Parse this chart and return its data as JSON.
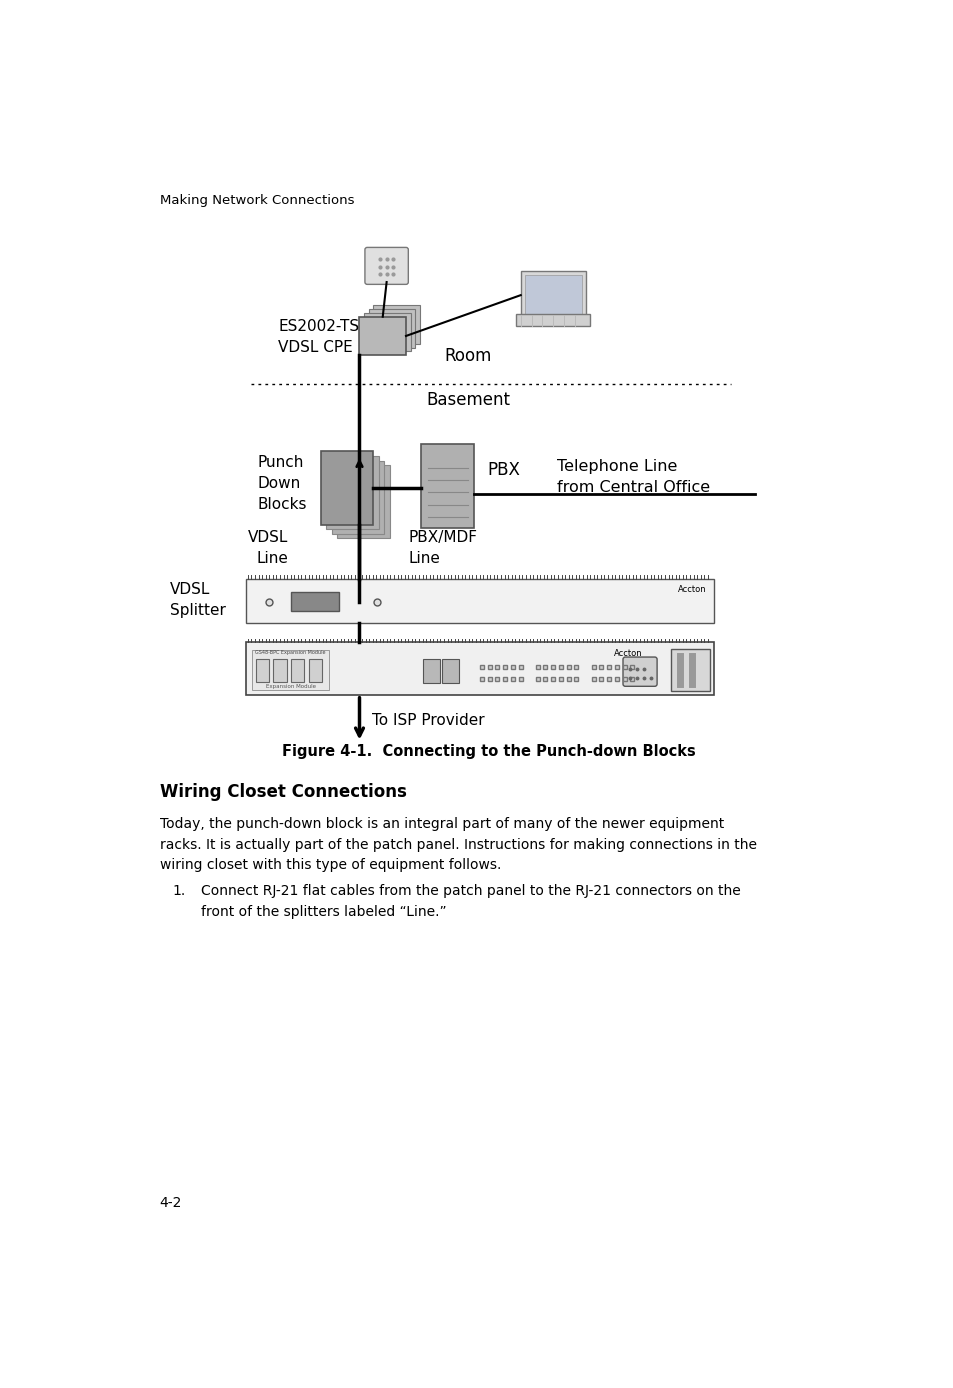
{
  "bg_color": "#ffffff",
  "page_header": "Making Network Connections",
  "page_footer": "4-2",
  "figure_caption": "Figure 4-1.  Connecting to the Punch-down Blocks",
  "section_title": "Wiring Closet Connections",
  "body_text": "Today, the punch-down block is an integral part of many of the newer equipment\nracks. It is actually part of the patch panel. Instructions for making connections in the\nwiring closet with this type of equipment follows.",
  "list_item": "Connect RJ-21 flat cables from the patch panel to the RJ-21 connectors on the\nfront of the splitters labeled “Line.”",
  "labels": {
    "es2002": "ES2002-TS\nVDSL CPE",
    "room": "Room",
    "basement": "Basement",
    "punch_down": "Punch\nDown\nBlocks",
    "vdsl_line": "VDSL\nLine",
    "pbx": "PBX",
    "pbx_mdf": "PBX/MDF\nLine",
    "telephone": "Telephone Line\nfrom Central Office",
    "vdsl_splitter": "VDSL\nSplitter",
    "isp": "To ISP Provider"
  }
}
